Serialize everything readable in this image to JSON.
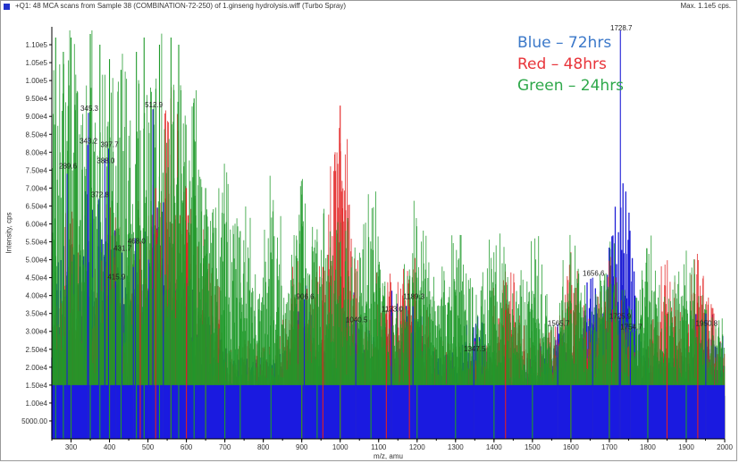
{
  "header": {
    "title": "+Q1: 48 MCA scans from Sample 38 (COMBINATION-72-250) of 1.ginseng hydrolysis.wiff (Turbo Spray)",
    "max": "Max. 1.1e5 cps."
  },
  "chart_data": {
    "type": "line",
    "xlabel": "m/z, amu",
    "ylabel": "Intensity, cps",
    "xlim": [
      250,
      2000
    ],
    "ylim": [
      0,
      114000
    ],
    "grid": false,
    "legend_position": "top-right",
    "x_ticks": [
      "300",
      "400",
      "500",
      "600",
      "700",
      "800",
      "900",
      "1000",
      "1100",
      "1200",
      "1300",
      "1400",
      "1500",
      "1600",
      "1700",
      "1800",
      "1900",
      "2000"
    ],
    "y_ticks": [
      {
        "value": 5000,
        "label": "5000.00"
      },
      {
        "value": 10000,
        "label": "1.00e4"
      },
      {
        "value": 15000,
        "label": "1.50e4"
      },
      {
        "value": 20000,
        "label": "2.00e4"
      },
      {
        "value": 25000,
        "label": "2.50e4"
      },
      {
        "value": 30000,
        "label": "3.00e4"
      },
      {
        "value": 35000,
        "label": "3.50e4"
      },
      {
        "value": 40000,
        "label": "4.00e4"
      },
      {
        "value": 45000,
        "label": "4.50e4"
      },
      {
        "value": 50000,
        "label": "5.00e4"
      },
      {
        "value": 55000,
        "label": "5.50e4"
      },
      {
        "value": 60000,
        "label": "6.00e4"
      },
      {
        "value": 65000,
        "label": "6.50e4"
      },
      {
        "value": 70000,
        "label": "7.00e4"
      },
      {
        "value": 75000,
        "label": "7.50e4"
      },
      {
        "value": 80000,
        "label": "8.00e4"
      },
      {
        "value": 85000,
        "label": "8.50e4"
      },
      {
        "value": 90000,
        "label": "9.00e4"
      },
      {
        "value": 95000,
        "label": "9.50e4"
      },
      {
        "value": 100000,
        "label": "1.00e5"
      },
      {
        "value": 105000,
        "label": "1.05e5"
      },
      {
        "value": 110000,
        "label": "1.10e5"
      }
    ],
    "legend": [
      {
        "label": "Blue – 72hrs",
        "color": "#3b78c9"
      },
      {
        "label": "Red – 48hrs",
        "color": "#e8343a"
      },
      {
        "label": "Green – 24hrs",
        "color": "#2ea84a"
      }
    ],
    "series": [
      {
        "name": "Blue – 72hrs",
        "color": "#1f1fd6",
        "baseline": 20000,
        "peaks": [
          [
            289.6,
            74000
          ],
          [
            345.3,
            91000
          ],
          [
            343.2,
            82000
          ],
          [
            372.8,
            67000
          ],
          [
            388.0,
            78000
          ],
          [
            397.7,
            81000
          ],
          [
            415.9,
            44000
          ],
          [
            431.7,
            52000
          ],
          [
            462,
            48000
          ],
          [
            468,
            56000
          ],
          [
            502,
            50000
          ],
          [
            512.9,
            92000
          ],
          [
            540,
            66000
          ],
          [
            560,
            60000
          ],
          [
            600,
            45000
          ],
          [
            650,
            38000
          ],
          [
            906.6,
            39000
          ],
          [
            1040.5,
            33000
          ],
          [
            1133.0,
            36000
          ],
          [
            1189.3,
            37000
          ],
          [
            1347.5,
            25000
          ],
          [
            1565.7,
            32000
          ],
          [
            1656.6,
            45000
          ],
          [
            1725.9,
            33000
          ],
          [
            1728.7,
            115000
          ],
          [
            1754.7,
            30000
          ],
          [
            1950.8,
            35000
          ]
        ]
      },
      {
        "name": "Red – 48hrs",
        "color": "#e32020",
        "baseline": 24000,
        "peaks": [
          [
            300,
            60000
          ],
          [
            400,
            70000
          ],
          [
            480,
            55000
          ],
          [
            520,
            70000
          ],
          [
            560,
            95000
          ],
          [
            600,
            70000
          ],
          [
            650,
            45000
          ],
          [
            900,
            40000
          ],
          [
            955,
            48000
          ],
          [
            1000,
            93000
          ],
          [
            1120,
            35000
          ],
          [
            1180,
            37000
          ],
          [
            1430,
            36000
          ],
          [
            1600,
            36000
          ],
          [
            1700,
            34000
          ],
          [
            1850,
            35000
          ],
          [
            1930,
            38000
          ]
        ]
      },
      {
        "name": "Green – 24hrs",
        "color": "#1f9a2a",
        "baseline": 30000,
        "peaks": [
          [
            260,
            112000
          ],
          [
            280,
            108000
          ],
          [
            300,
            112000
          ],
          [
            350,
            113000
          ],
          [
            375,
            110000
          ],
          [
            400,
            106000
          ],
          [
            430,
            103000
          ],
          [
            470,
            108000
          ],
          [
            490,
            112000
          ],
          [
            530,
            110000
          ],
          [
            560,
            112000
          ],
          [
            580,
            110000
          ],
          [
            620,
            95000
          ],
          [
            650,
            70000
          ],
          [
            700,
            60000
          ],
          [
            740,
            58000
          ],
          [
            820,
            52000
          ],
          [
            900,
            60000
          ],
          [
            940,
            55000
          ],
          [
            1000,
            55000
          ],
          [
            1080,
            53000
          ],
          [
            1200,
            45000
          ],
          [
            1300,
            40000
          ],
          [
            1400,
            40000
          ],
          [
            1500,
            36000
          ],
          [
            1600,
            35000
          ],
          [
            1700,
            35000
          ],
          [
            1800,
            34000
          ],
          [
            1900,
            33000
          ]
        ]
      }
    ],
    "annotations": [
      {
        "x": 345.3,
        "y": 91000,
        "label": "345.3"
      },
      {
        "x": 343.2,
        "y": 82000,
        "label": "343.2"
      },
      {
        "x": 397.7,
        "y": 81000,
        "label": "397.7"
      },
      {
        "x": 388.0,
        "y": 76500,
        "label": "388.0"
      },
      {
        "x": 289.6,
        "y": 75000,
        "label": "289.6"
      },
      {
        "x": 372.8,
        "y": 67000,
        "label": "372.8"
      },
      {
        "x": 512.9,
        "y": 92000,
        "label": "512.9"
      },
      {
        "x": 431.7,
        "y": 52000,
        "label": "431.7"
      },
      {
        "x": 415.9,
        "y": 44000,
        "label": "415.9"
      },
      {
        "x": 468.0,
        "y": 54000,
        "label": "468.0"
      },
      {
        "x": 906.6,
        "y": 38500,
        "label": "906.6"
      },
      {
        "x": 1040.5,
        "y": 32000,
        "label": "1040.5"
      },
      {
        "x": 1133.0,
        "y": 35000,
        "label": "1133.0"
      },
      {
        "x": 1189.3,
        "y": 38500,
        "label": "1189.3"
      },
      {
        "x": 1347.5,
        "y": 24000,
        "label": "1347.5"
      },
      {
        "x": 1565.7,
        "y": 31000,
        "label": "1565.7"
      },
      {
        "x": 1656.6,
        "y": 45000,
        "label": "1656.6"
      },
      {
        "x": 1725.9,
        "y": 33000,
        "label": "1725.9"
      },
      {
        "x": 1728.7,
        "y": 113500,
        "label": "1728.7"
      },
      {
        "x": 1754.7,
        "y": 30000,
        "label": "1754.7"
      },
      {
        "x": 1950.8,
        "y": 31000,
        "label": "1950.8"
      }
    ]
  }
}
